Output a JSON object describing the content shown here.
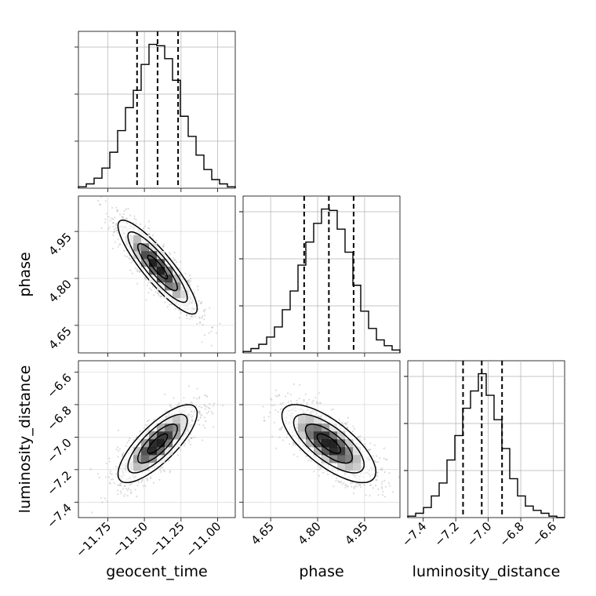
{
  "chart_data": {
    "type": "corner",
    "parameters": [
      "geocent_time",
      "phase",
      "luminosity_distance"
    ],
    "axis_labels": {
      "x": [
        "geocent_time",
        "phase",
        "luminosity_distance"
      ],
      "y_row2": "phase",
      "y_row3": "luminosity_distance"
    },
    "ranges": {
      "geocent_time": [
        -11.95,
        -10.88
      ],
      "phase": [
        4.562,
        5.063
      ],
      "luminosity_distance": [
        -7.495,
        -6.53
      ]
    },
    "ticks": {
      "geocent_time": [
        {
          "v": -11.75,
          "label": "−11.75"
        },
        {
          "v": -11.5,
          "label": "−11.50"
        },
        {
          "v": -11.25,
          "label": "−11.25"
        },
        {
          "v": -11.0,
          "label": "−11.00"
        }
      ],
      "phase": [
        {
          "v": 4.65,
          "label": "4.65"
        },
        {
          "v": 4.8,
          "label": "4.80"
        },
        {
          "v": 4.95,
          "label": "4.95"
        }
      ],
      "luminosity_distance": [
        {
          "v": -7.4,
          "label": "−7.4"
        },
        {
          "v": -7.2,
          "label": "−7.2"
        },
        {
          "v": -7.0,
          "label": "−7.0"
        },
        {
          "v": -6.8,
          "label": "−6.8"
        },
        {
          "v": -6.6,
          "label": "−6.6"
        }
      ]
    },
    "quantiles": {
      "geocent_time": [
        -11.55,
        -11.41,
        -11.27
      ],
      "phase": [
        4.757,
        4.836,
        4.915
      ],
      "luminosity_distance": [
        -7.155,
        -7.04,
        -6.915
      ]
    },
    "marginals": {
      "geocent_time": {
        "range": [
          -11.95,
          -10.88
        ],
        "counts": [
          1,
          3,
          7,
          14,
          25,
          40,
          56,
          68,
          86,
          100,
          99,
          90,
          75,
          50,
          36,
          23,
          13,
          6,
          3,
          1
        ]
      },
      "phase": {
        "range": [
          4.562,
          5.063
        ],
        "counts": [
          1,
          3,
          6,
          11,
          18,
          30,
          43,
          61,
          77,
          90,
          100,
          99,
          86,
          70,
          47,
          29,
          17,
          9,
          5,
          2
        ]
      },
      "luminosity_distance": {
        "range": [
          -7.495,
          -6.53
        ],
        "counts": [
          1,
          3,
          7,
          15,
          24,
          40,
          57,
          76,
          88,
          100,
          85,
          68,
          48,
          27,
          15,
          8,
          5,
          3,
          1,
          0
        ]
      }
    },
    "joint": {
      "mean": {
        "geocent_time": -11.41,
        "phase": 4.836,
        "luminosity_distance": -7.04
      },
      "sigma": {
        "geocent_time": 0.135,
        "phase": 0.075,
        "luminosity_distance": 0.12
      },
      "correlation": {
        "geocent_time|phase": -0.88,
        "geocent_time|luminosity_distance": 0.78,
        "phase|luminosity_distance": -0.72
      }
    },
    "contour_levels": [
      0.5,
      1.0,
      1.5,
      2.0
    ],
    "grid": true,
    "colors": {
      "line": "#000000",
      "scatter": "#9a9a9a",
      "grid": "#b0b0b0"
    }
  }
}
